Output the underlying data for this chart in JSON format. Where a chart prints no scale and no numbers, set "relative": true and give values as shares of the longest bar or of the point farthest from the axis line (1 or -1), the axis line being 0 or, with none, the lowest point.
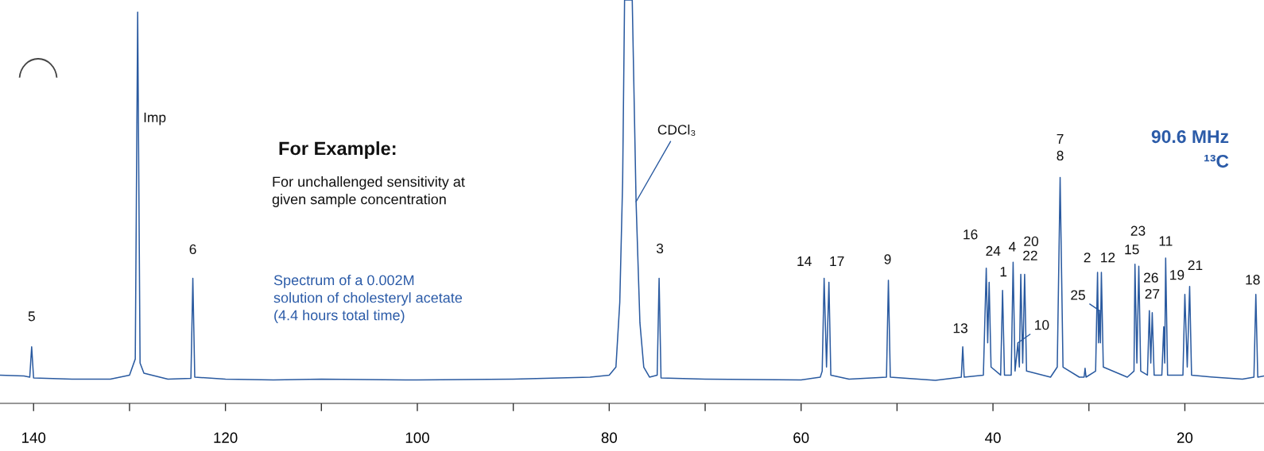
{
  "chart_data": {
    "type": "line",
    "relative": true,
    "xlim": [
      143.5,
      11.75
    ],
    "xticks": [
      140,
      {
        "value": 130,
        "label": null
      },
      120,
      {
        "value": 110,
        "label": null
      },
      100,
      {
        "value": 90,
        "label": null
      },
      80,
      {
        "value": 70,
        "label": null
      },
      60,
      {
        "value": 50,
        "label": null
      },
      40,
      {
        "value": 30,
        "label": null
      },
      20
    ],
    "grid": false,
    "legend": false,
    "series": [
      {
        "color": "#2a5aa0",
        "x": [
          143.5,
          141,
          140.4,
          140.2,
          140.0,
          136,
          132,
          130,
          129.4,
          129.15,
          128.9,
          128.5,
          126,
          123.6,
          123.4,
          123.2,
          120,
          115,
          110,
          100,
          90,
          82,
          80,
          79.3,
          78.9,
          78.6,
          78.4,
          77.6,
          77.2,
          76.8,
          76.4,
          75.8,
          75.0,
          74.8,
          74.6,
          70,
          60,
          58,
          57.8,
          57.6,
          57.35,
          57.1,
          56.9,
          55,
          51.1,
          50.9,
          50.7,
          46,
          43.3,
          43.15,
          43.0,
          41.0,
          40.7,
          40.55,
          40.4,
          40.2,
          39.2,
          39.0,
          38.8,
          38.1,
          37.9,
          37.7,
          37.4,
          37.25,
          37.1,
          36.9,
          36.7,
          36.5,
          34,
          33.3,
          33.0,
          32.7,
          31,
          30.5,
          30.4,
          30.3,
          29.3,
          29.1,
          29.0,
          28.9,
          28.8,
          28.7,
          28.5,
          26,
          25.3,
          25.2,
          25.0,
          24.8,
          24.6,
          23.9,
          23.7,
          23.55,
          23.4,
          23.2,
          22.4,
          22.2,
          22.1,
          22.0,
          21.8,
          20.2,
          20.0,
          19.75,
          19.5,
          19.3,
          17,
          14,
          12.8,
          12.6,
          12.4,
          11.75
        ],
        "values": [
          0.07,
          0.068,
          0.065,
          0.14,
          0.063,
          0.06,
          0.06,
          0.07,
          0.11,
          0.97,
          0.1,
          0.075,
          0.06,
          0.062,
          0.31,
          0.065,
          0.06,
          0.058,
          0.06,
          0.058,
          0.06,
          0.065,
          0.07,
          0.09,
          0.25,
          0.55,
          1.0,
          1.0,
          0.5,
          0.2,
          0.09,
          0.065,
          0.07,
          0.31,
          0.063,
          0.06,
          0.058,
          0.065,
          0.08,
          0.31,
          0.09,
          0.3,
          0.07,
          0.06,
          0.065,
          0.305,
          0.065,
          0.057,
          0.065,
          0.14,
          0.065,
          0.07,
          0.335,
          0.15,
          0.3,
          0.09,
          0.07,
          0.28,
          0.07,
          0.07,
          0.35,
          0.08,
          0.15,
          0.09,
          0.32,
          0.1,
          0.32,
          0.08,
          0.065,
          0.09,
          0.56,
          0.09,
          0.065,
          0.065,
          0.087,
          0.065,
          0.08,
          0.325,
          0.15,
          0.23,
          0.15,
          0.325,
          0.09,
          0.065,
          0.08,
          0.345,
          0.1,
          0.34,
          0.08,
          0.07,
          0.23,
          0.1,
          0.225,
          0.07,
          0.07,
          0.19,
          0.1,
          0.36,
          0.07,
          0.07,
          0.27,
          0.09,
          0.29,
          0.07,
          0.065,
          0.06,
          0.065,
          0.27,
          0.065,
          0.068
        ]
      }
    ],
    "annotations": [
      "For Example:",
      "For unchallenged sensitivity at\ngiven sample concentration",
      "Spectrum of a 0.002M\nsolution of cholesteryl acetate\n(4.4 hours total time)",
      "90.6 MHz",
      "¹³C",
      {
        "text": "5",
        "x": 140.2,
        "y": 0.14
      },
      {
        "text": "Imp",
        "x": 129.2,
        "y": 0.7
      },
      {
        "text": "6",
        "x": 123.4,
        "y": 0.31
      },
      {
        "text": "CDCl₃",
        "x": 77.2,
        "y": 0.5
      },
      {
        "text": "3",
        "x": 74.8,
        "y": 0.31
      },
      {
        "text": "14",
        "x": 57.6,
        "y": 0.31
      },
      {
        "text": "17",
        "x": 57.1,
        "y": 0.3
      },
      {
        "text": "9",
        "x": 50.9,
        "y": 0.305
      },
      {
        "text": "13",
        "x": 43.15,
        "y": 0.14
      },
      {
        "text": "16",
        "x": 40.7,
        "y": 0.335
      },
      {
        "text": "24",
        "x": 40.4,
        "y": 0.3
      },
      {
        "text": "4",
        "x": 37.9,
        "y": 0.35
      },
      {
        "text": "1",
        "x": 39.0,
        "y": 0.28
      },
      {
        "text": "20",
        "x": 37.1,
        "y": 0.32
      },
      {
        "text": "22",
        "x": 36.7,
        "y": 0.32
      },
      {
        "text": "10",
        "x": 37.4,
        "y": 0.15
      },
      {
        "text": "7",
        "x": 33.0,
        "y": 0.56
      },
      {
        "text": "8",
        "x": 33.0,
        "y": 0.56
      },
      {
        "text": "25",
        "x": 28.9,
        "y": 0.23
      },
      {
        "text": "2",
        "x": 29.1,
        "y": 0.325
      },
      {
        "text": "12",
        "x": 28.7,
        "y": 0.325
      },
      {
        "text": "23",
        "x": 24.8,
        "y": 0.34
      },
      {
        "text": "15",
        "x": 25.2,
        "y": 0.345
      },
      {
        "text": "11",
        "x": 22.0,
        "y": 0.36
      },
      {
        "text": "26",
        "x": 23.7,
        "y": 0.23
      },
      {
        "text": "27",
        "x": 23.4,
        "y": 0.225
      },
      {
        "text": "19",
        "x": 20.0,
        "y": 0.27
      },
      {
        "text": "21",
        "x": 19.5,
        "y": 0.29
      },
      {
        "text": "18",
        "x": 12.6,
        "y": 0.27
      }
    ]
  }
}
